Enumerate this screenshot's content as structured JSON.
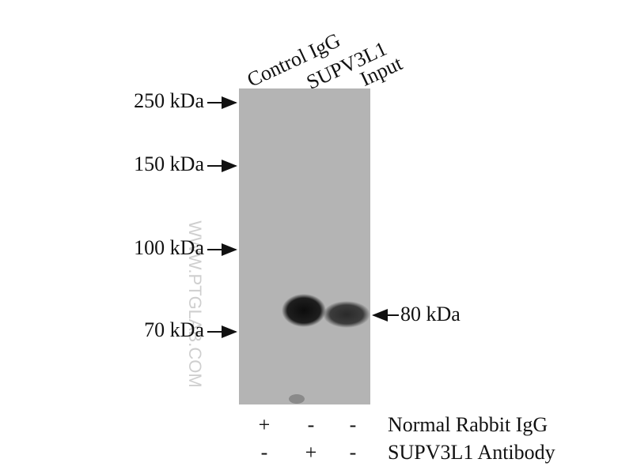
{
  "lanes": [
    "Control IgG",
    "SUPV3L1",
    "Input"
  ],
  "markers": [
    "250 kDa",
    "150 kDa",
    "100 kDa",
    "70 kDa"
  ],
  "band_label": "80 kDa",
  "watermark": "WWW.PTGLAB.COM",
  "conditions": [
    {
      "label": "Normal Rabbit IgG",
      "signs": [
        "+",
        "-",
        "-"
      ]
    },
    {
      "label": "SUPV3L1 Antibody",
      "signs": [
        "-",
        "+",
        "-"
      ]
    }
  ]
}
